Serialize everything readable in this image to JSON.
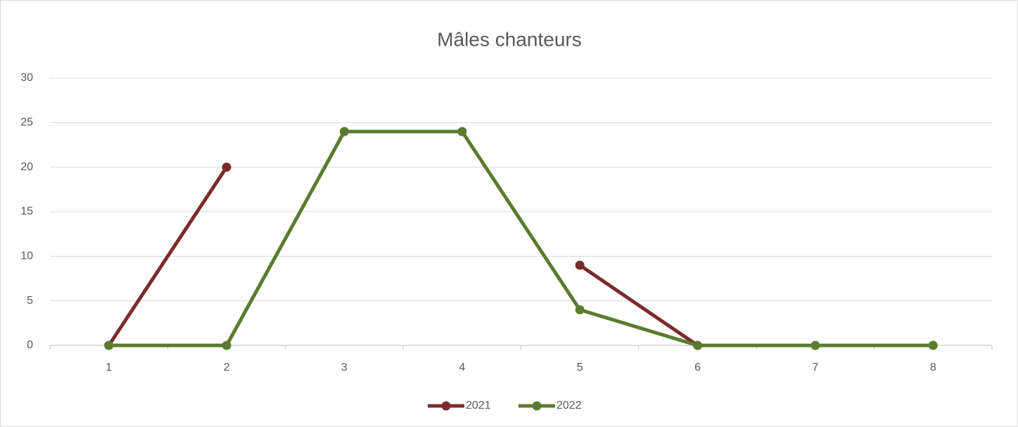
{
  "chart_data": {
    "type": "line",
    "title": "Mâles chanteurs",
    "categories": [
      1,
      2,
      3,
      4,
      5,
      6,
      7,
      8
    ],
    "series": [
      {
        "name": "2021",
        "color": "#7b2b2b",
        "values": [
          0,
          20,
          null,
          null,
          9,
          0,
          null,
          null
        ]
      },
      {
        "name": "2022",
        "color": "#5b7b2e",
        "values": [
          0,
          0,
          24,
          24,
          4,
          0,
          0,
          0
        ]
      }
    ],
    "ylim": [
      0,
      30
    ],
    "yticks": [
      0,
      5,
      10,
      15,
      20,
      25,
      30
    ],
    "grid": true,
    "legend": "bottom"
  }
}
